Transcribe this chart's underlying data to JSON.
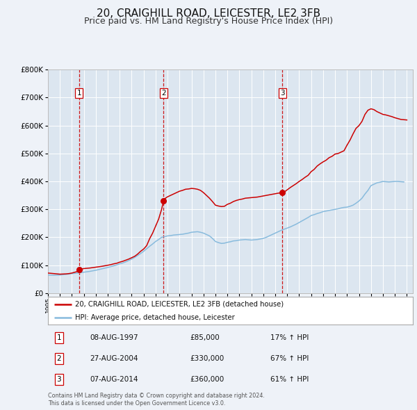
{
  "title": "20, CRAIGHILL ROAD, LEICESTER, LE2 3FB",
  "subtitle": "Price paid vs. HM Land Registry's House Price Index (HPI)",
  "title_fontsize": 11,
  "subtitle_fontsize": 9,
  "background_color": "#eef2f8",
  "plot_bg_color": "#dce6f0",
  "ylim": [
    0,
    800000
  ],
  "yticks": [
    0,
    100000,
    200000,
    300000,
    400000,
    500000,
    600000,
    700000,
    800000
  ],
  "xlim_start": 1995.0,
  "xlim_end": 2025.5,
  "sale_color": "#cc0000",
  "hpi_color": "#88bbdd",
  "vline_color": "#cc0000",
  "marker_color": "#cc0000",
  "transactions": [
    {
      "date_num": 1997.604,
      "price": 85000,
      "label": "1"
    },
    {
      "date_num": 2004.654,
      "price": 330000,
      "label": "2"
    },
    {
      "date_num": 2014.597,
      "price": 360000,
      "label": "3"
    }
  ],
  "legend_label_sale": "20, CRAIGHILL ROAD, LEICESTER, LE2 3FB (detached house)",
  "legend_label_hpi": "HPI: Average price, detached house, Leicester",
  "table_rows": [
    {
      "num": "1",
      "date": "08-AUG-1997",
      "price": "£85,000",
      "change": "17% ↑ HPI"
    },
    {
      "num": "2",
      "date": "27-AUG-2004",
      "price": "£330,000",
      "change": "67% ↑ HPI"
    },
    {
      "num": "3",
      "date": "07-AUG-2014",
      "price": "£360,000",
      "change": "61% ↑ HPI"
    }
  ],
  "footer": "Contains HM Land Registry data © Crown copyright and database right 2024.\nThis data is licensed under the Open Government Licence v3.0.",
  "sale_line": {
    "x": [
      1995.0,
      1995.25,
      1995.5,
      1995.75,
      1996.0,
      1996.25,
      1996.5,
      1996.75,
      1997.0,
      1997.25,
      1997.5,
      1997.604,
      1997.75,
      1998.0,
      1998.25,
      1998.5,
      1998.75,
      1999.0,
      1999.25,
      1999.5,
      1999.75,
      2000.0,
      2000.25,
      2000.5,
      2000.75,
      2001.0,
      2001.25,
      2001.5,
      2001.75,
      2002.0,
      2002.25,
      2002.5,
      2002.75,
      2003.0,
      2003.25,
      2003.5,
      2003.75,
      2004.0,
      2004.25,
      2004.5,
      2004.654,
      2004.75,
      2005.0,
      2005.25,
      2005.5,
      2005.75,
      2006.0,
      2006.25,
      2006.5,
      2006.75,
      2007.0,
      2007.25,
      2007.5,
      2007.75,
      2008.0,
      2008.25,
      2008.5,
      2008.75,
      2009.0,
      2009.25,
      2009.5,
      2009.75,
      2010.0,
      2010.25,
      2010.5,
      2010.75,
      2011.0,
      2011.25,
      2011.5,
      2011.75,
      2012.0,
      2012.25,
      2012.5,
      2012.75,
      2013.0,
      2013.25,
      2013.5,
      2013.75,
      2014.0,
      2014.25,
      2014.5,
      2014.597,
      2014.75,
      2015.0,
      2015.25,
      2015.5,
      2015.75,
      2016.0,
      2016.25,
      2016.5,
      2016.75,
      2017.0,
      2017.25,
      2017.5,
      2017.75,
      2018.0,
      2018.25,
      2018.5,
      2018.75,
      2019.0,
      2019.25,
      2019.5,
      2019.75,
      2020.0,
      2020.25,
      2020.5,
      2020.75,
      2021.0,
      2021.25,
      2021.5,
      2021.75,
      2022.0,
      2022.25,
      2022.5,
      2022.75,
      2023.0,
      2023.25,
      2023.5,
      2023.75,
      2024.0,
      2024.25,
      2024.5,
      2024.75,
      2025.0
    ],
    "y": [
      72000,
      71000,
      70000,
      69000,
      68000,
      68500,
      69000,
      70000,
      72000,
      75000,
      78000,
      85000,
      86000,
      88000,
      89000,
      90000,
      91500,
      93000,
      94500,
      96000,
      98000,
      100000,
      102000,
      105000,
      107000,
      111000,
      114000,
      118000,
      122000,
      127000,
      132000,
      140000,
      150000,
      158000,
      170000,
      195000,
      215000,
      240000,
      265000,
      300000,
      330000,
      338000,
      345000,
      350000,
      355000,
      360000,
      365000,
      368000,
      372000,
      373000,
      375000,
      374000,
      372000,
      368000,
      360000,
      350000,
      340000,
      328000,
      315000,
      312000,
      310000,
      311000,
      318000,
      322000,
      328000,
      332000,
      335000,
      337000,
      340000,
      341000,
      342000,
      343000,
      344000,
      346000,
      348000,
      350000,
      352000,
      354000,
      356000,
      358000,
      359000,
      360000,
      362000,
      370000,
      378000,
      385000,
      392000,
      400000,
      407000,
      415000,
      422000,
      435000,
      443000,
      455000,
      463000,
      470000,
      476000,
      485000,
      490000,
      498000,
      500000,
      505000,
      510000,
      530000,
      548000,
      570000,
      590000,
      600000,
      615000,
      640000,
      655000,
      660000,
      657000,
      650000,
      645000,
      640000,
      638000,
      635000,
      632000,
      628000,
      625000,
      622000,
      621000,
      620000
    ]
  },
  "hpi_line": {
    "x": [
      1995.0,
      1995.25,
      1995.5,
      1995.75,
      1996.0,
      1996.25,
      1996.5,
      1996.75,
      1997.0,
      1997.25,
      1997.5,
      1997.75,
      1998.0,
      1998.25,
      1998.5,
      1998.75,
      1999.0,
      1999.25,
      1999.5,
      1999.75,
      2000.0,
      2000.25,
      2000.5,
      2000.75,
      2001.0,
      2001.25,
      2001.5,
      2001.75,
      2002.0,
      2002.25,
      2002.5,
      2002.75,
      2003.0,
      2003.25,
      2003.5,
      2003.75,
      2004.0,
      2004.25,
      2004.5,
      2004.75,
      2005.0,
      2005.25,
      2005.5,
      2005.75,
      2006.0,
      2006.25,
      2006.5,
      2006.75,
      2007.0,
      2007.25,
      2007.5,
      2007.75,
      2008.0,
      2008.25,
      2008.5,
      2008.75,
      2009.0,
      2009.25,
      2009.5,
      2009.75,
      2010.0,
      2010.25,
      2010.5,
      2010.75,
      2011.0,
      2011.25,
      2011.5,
      2011.75,
      2012.0,
      2012.25,
      2012.5,
      2012.75,
      2013.0,
      2013.25,
      2013.5,
      2013.75,
      2014.0,
      2014.25,
      2014.5,
      2014.75,
      2015.0,
      2015.25,
      2015.5,
      2015.75,
      2016.0,
      2016.25,
      2016.5,
      2016.75,
      2017.0,
      2017.25,
      2017.5,
      2017.75,
      2018.0,
      2018.25,
      2018.5,
      2018.75,
      2019.0,
      2019.25,
      2019.5,
      2019.75,
      2020.0,
      2020.25,
      2020.5,
      2020.75,
      2021.0,
      2021.25,
      2021.5,
      2021.75,
      2022.0,
      2022.25,
      2022.5,
      2022.75,
      2023.0,
      2023.25,
      2023.5,
      2023.75,
      2024.0,
      2024.25,
      2024.5,
      2024.75
    ],
    "y": [
      65000,
      64500,
      64000,
      64500,
      65000,
      66000,
      67000,
      68500,
      70000,
      71000,
      72000,
      73500,
      75000,
      76500,
      78000,
      80000,
      82000,
      84500,
      87000,
      89500,
      92000,
      95000,
      98000,
      101000,
      105000,
      108000,
      112000,
      117000,
      122000,
      128000,
      135000,
      142000,
      150000,
      159000,
      168000,
      176000,
      185000,
      192000,
      200000,
      202000,
      205000,
      206000,
      208000,
      209000,
      210000,
      211000,
      213000,
      215000,
      218000,
      219000,
      220000,
      218000,
      215000,
      210000,
      205000,
      196000,
      185000,
      181000,
      178000,
      179000,
      182000,
      184000,
      187000,
      188000,
      190000,
      191000,
      192000,
      191000,
      190000,
      191000,
      192000,
      194000,
      196000,
      200000,
      205000,
      210000,
      215000,
      220000,
      225000,
      229000,
      233000,
      237000,
      242000,
      247000,
      253000,
      259000,
      265000,
      271000,
      278000,
      281000,
      285000,
      288000,
      292000,
      294000,
      296000,
      298000,
      300000,
      302000,
      305000,
      307000,
      308000,
      311000,
      315000,
      322000,
      330000,
      340000,
      355000,
      368000,
      385000,
      390000,
      395000,
      397000,
      400000,
      399000,
      398000,
      399000,
      400000,
      400000,
      399000,
      398000
    ]
  }
}
